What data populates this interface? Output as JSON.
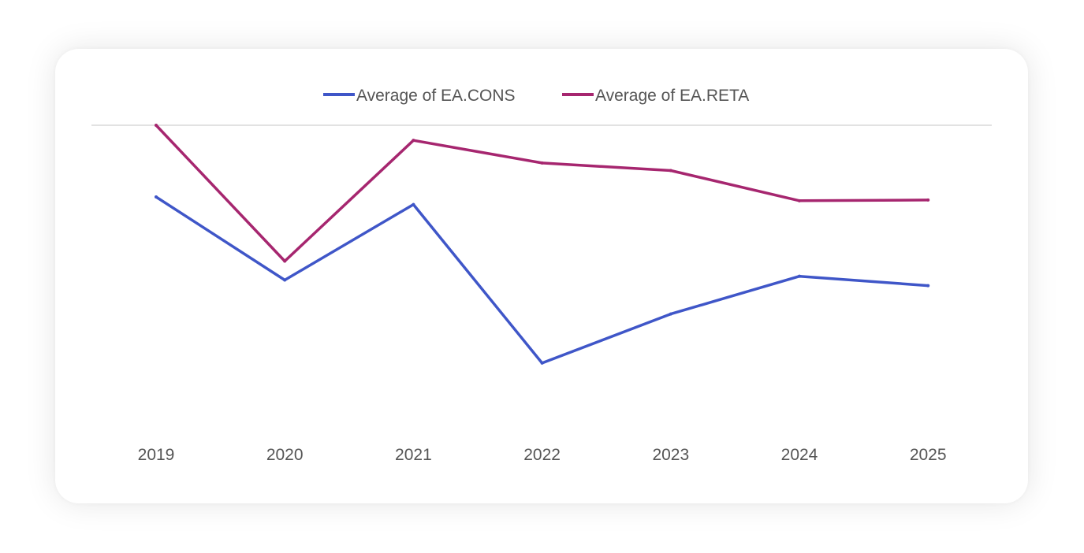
{
  "chart_data": {
    "type": "line",
    "categories": [
      "2019",
      "2020",
      "2021",
      "2022",
      "2023",
      "2024",
      "2025"
    ],
    "series": [
      {
        "name": "Average of EA.CONS",
        "color": "#3f56c8",
        "values": [
          73,
          51,
          71,
          29,
          42,
          52,
          49.5
        ]
      },
      {
        "name": "Average of EA.RETA",
        "color": "#a6266f",
        "values": [
          92,
          56,
          88,
          82,
          80,
          72,
          72.2
        ]
      }
    ],
    "ylim": [
      20,
      92
    ],
    "grid": "top-line-only",
    "legend": "top"
  }
}
